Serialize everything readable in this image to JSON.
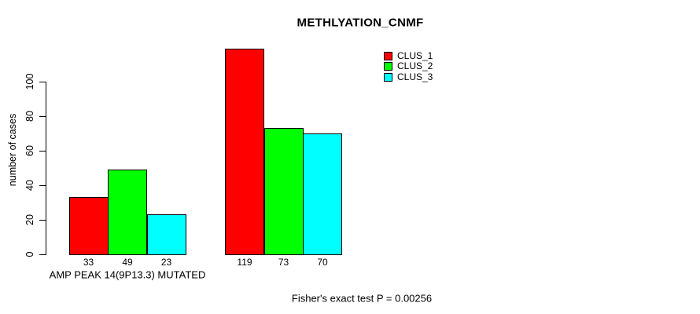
{
  "chart_data": {
    "type": "bar",
    "title": "METHLYATION_CNMF",
    "ylabel": "number of cases",
    "xlabel": "",
    "caption": "Fisher's exact test P = 0.00256",
    "categories": [
      "AMP PEAK 14(9P13.3) MUTATED",
      ""
    ],
    "series": [
      {
        "name": "CLUS_1",
        "color": "#ff0000",
        "values": [
          33,
          119
        ]
      },
      {
        "name": "CLUS_2",
        "color": "#00ff00",
        "values": [
          49,
          73
        ]
      },
      {
        "name": "CLUS_3",
        "color": "#00ffff",
        "values": [
          23,
          70
        ]
      }
    ],
    "bar_value_labels": [
      [
        33,
        49,
        23
      ],
      [
        119,
        73,
        70
      ]
    ],
    "y_ticks": [
      0,
      20,
      40,
      60,
      80,
      100
    ],
    "ylim": [
      0,
      120
    ],
    "grid": false,
    "legend_position": "top-right",
    "bar_border_color": "#000000",
    "text_color": "#000000",
    "background_color": "#ffffff"
  }
}
